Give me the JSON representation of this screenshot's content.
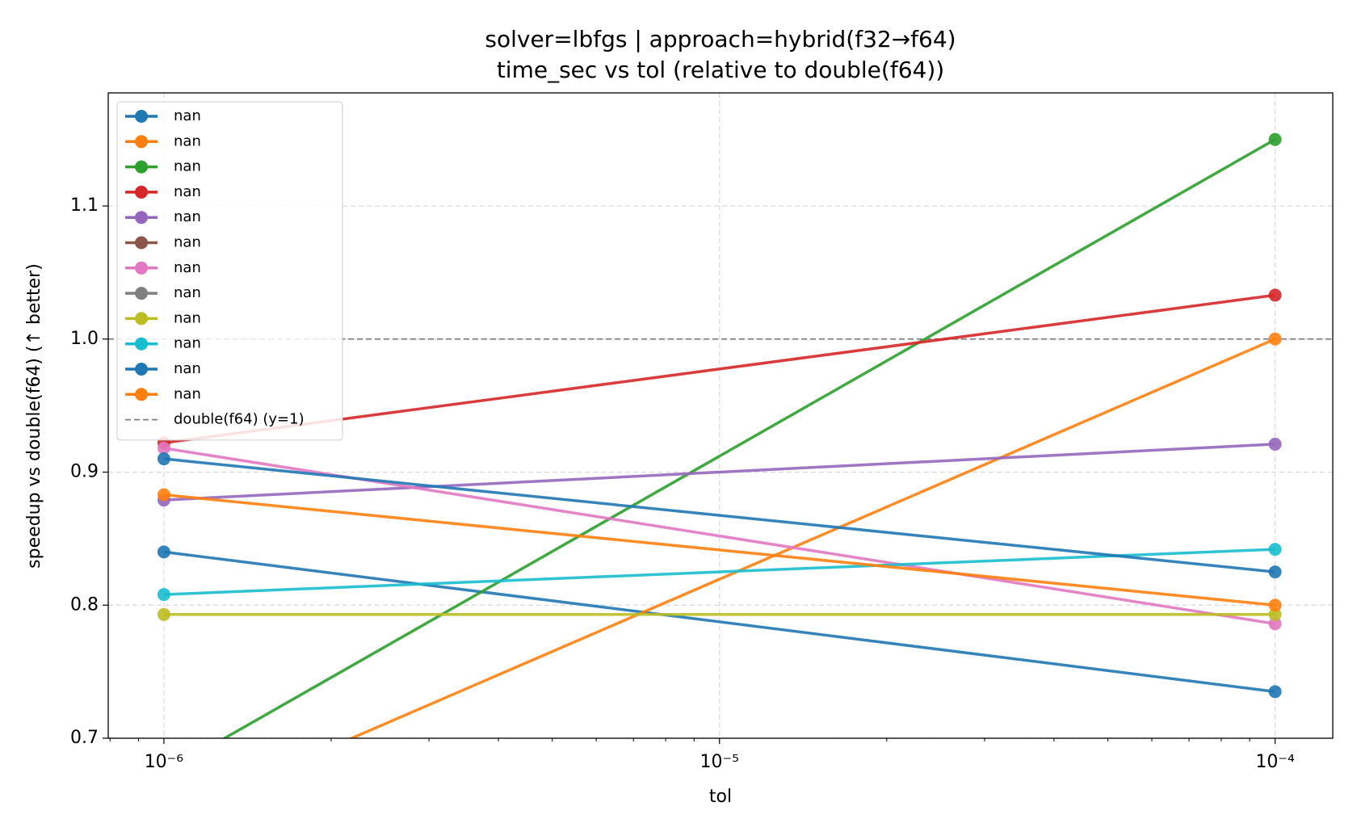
{
  "chart_data": {
    "type": "line",
    "title": "solver=lbfgs | approach=hybrid(f32→f64)",
    "subtitle": "time_sec vs tol (relative to double(f64))",
    "x_label": "tol",
    "y_label": "speedup vs double(f64) (↑ better)",
    "x": [
      1e-06,
      0.0001
    ],
    "x_log": true,
    "xlim": [
      7.94e-07,
      0.000127
    ],
    "xticks": [
      {
        "value": 1e-06,
        "label": "10⁻⁶"
      },
      {
        "value": 1e-05,
        "label": "10⁻⁵"
      },
      {
        "value": 0.0001,
        "label": "10⁻⁴"
      }
    ],
    "ylim": [
      0.7,
      1.185
    ],
    "yticks": [
      0.7,
      0.8,
      0.9,
      {
        "value": 1,
        "label": "1.0"
      },
      1.1
    ],
    "grid": true,
    "legend": "upper left",
    "series": [
      {
        "name": "nan",
        "color": "#1f77b4",
        "values": [
          0.84,
          0.735
        ]
      },
      {
        "name": "nan",
        "color": "#ff7f0e",
        "values": [
          0.639,
          1.0
        ]
      },
      {
        "name": "nan",
        "color": "#2ca02c",
        "values": [
          0.674,
          1.15
        ]
      },
      {
        "name": "nan",
        "color": "#d62728",
        "values": [
          0.922,
          1.033
        ]
      },
      {
        "name": "nan",
        "color": "#9467bd",
        "values": [
          0.879,
          0.921
        ]
      },
      {
        "name": "nan",
        "color": "#8c564b",
        "values": [
          null,
          null
        ]
      },
      {
        "name": "nan",
        "color": "#e377c2",
        "values": [
          0.918,
          0.786
        ]
      },
      {
        "name": "nan",
        "color": "#7f7f7f",
        "values": [
          null,
          null
        ]
      },
      {
        "name": "nan",
        "color": "#bcbd22",
        "values": [
          0.793,
          0.793
        ]
      },
      {
        "name": "nan",
        "color": "#17becf",
        "values": [
          0.808,
          0.842
        ]
      },
      {
        "name": "nan",
        "color": "#1f77b4",
        "values": [
          0.91,
          0.825
        ]
      },
      {
        "name": "nan",
        "color": "#ff7f0e",
        "values": [
          0.883,
          0.8
        ]
      }
    ],
    "hline": {
      "value": 1,
      "label": "double(f64) (y=1)",
      "color": "#7f7f7f"
    }
  }
}
